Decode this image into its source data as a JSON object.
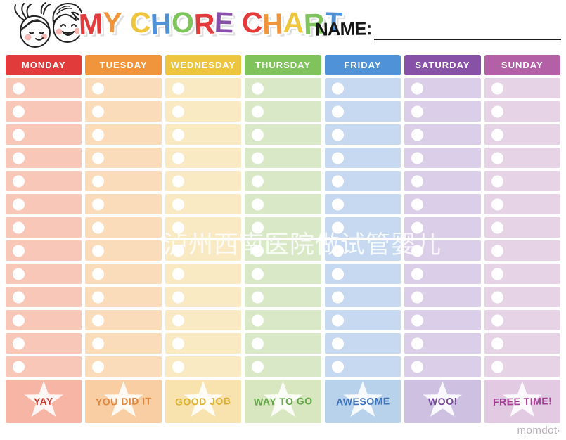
{
  "page": {
    "background": "#ffffff",
    "watermark": "泸州西南医院做试管婴儿",
    "brand": "momdot",
    "brand_mark": "•"
  },
  "header": {
    "title_text": "MY CHORE CHART",
    "title_letters": [
      {
        "ch": "M",
        "color": "#e23b3b"
      },
      {
        "ch": "Y",
        "color": "#f0953c"
      },
      {
        "ch": " ",
        "color": ""
      },
      {
        "ch": "C",
        "color": "#eec63e"
      },
      {
        "ch": "H",
        "color": "#4f92d7"
      },
      {
        "ch": "O",
        "color": "#7fc45c"
      },
      {
        "ch": "R",
        "color": "#e23b3b"
      },
      {
        "ch": "E",
        "color": "#8751a7"
      },
      {
        "ch": " ",
        "color": ""
      },
      {
        "ch": "C",
        "color": "#e23b3b"
      },
      {
        "ch": "H",
        "color": "#f0953c"
      },
      {
        "ch": "A",
        "color": "#eec63e"
      },
      {
        "ch": "R",
        "color": "#7fc45c"
      },
      {
        "ch": "T",
        "color": "#4f92d7"
      }
    ],
    "name_label": "NAME:",
    "name_value": ""
  },
  "icons": {
    "kids_illustration": "two-smiling-kids-faces-line-art",
    "bullet": "white-circle-checkpoint",
    "star": "white-five-point-star"
  },
  "chart": {
    "rows_per_day": 13,
    "days": [
      {
        "label": "MONDAY",
        "header_color": "#e23b3b",
        "cell_color": "#f9c7b8",
        "footer_color": "#f7b6a5",
        "footer_label": "YAY",
        "footer_text_color": "#c9362c"
      },
      {
        "label": "TUESDAY",
        "header_color": "#f0953c",
        "cell_color": "#fbdcba",
        "footer_color": "#f9cea3",
        "footer_label": "YOU DID IT",
        "footer_text_color": "#e0853a"
      },
      {
        "label": "WEDNESDAY",
        "header_color": "#edc53e",
        "cell_color": "#faeac3",
        "footer_color": "#f8e3ae",
        "footer_label": "GOOD JOB",
        "footer_text_color": "#dcb12e"
      },
      {
        "label": "THURSDAY",
        "header_color": "#80c35d",
        "cell_color": "#d9e9c7",
        "footer_color": "#d8e7bf",
        "footer_label": "WAY TO GO",
        "footer_text_color": "#63a647"
      },
      {
        "label": "FRIDAY",
        "header_color": "#4f92d7",
        "cell_color": "#c6d9f0",
        "footer_color": "#b9d2ec",
        "footer_label": "AWESOME",
        "footer_text_color": "#3d71ba"
      },
      {
        "label": "SATURDAY",
        "header_color": "#8751a7",
        "cell_color": "#dacee8",
        "footer_color": "#cdc0e1",
        "footer_label": "WOO!",
        "footer_text_color": "#73489b"
      },
      {
        "label": "SUNDAY",
        "header_color": "#b360a7",
        "cell_color": "#e6d4e6",
        "footer_color": "#e2cae2",
        "footer_label": "FREE TIME!",
        "footer_text_color": "#a53b92"
      }
    ]
  }
}
